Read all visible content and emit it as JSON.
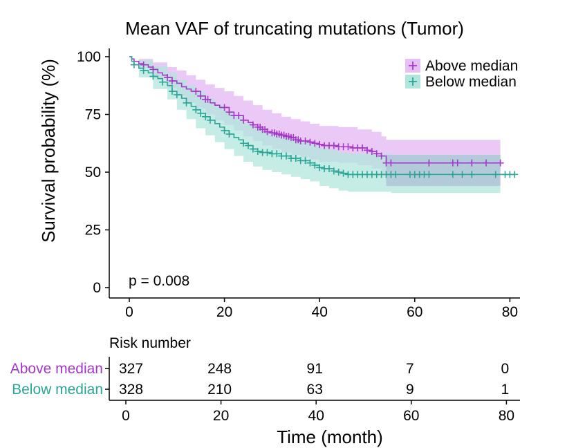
{
  "chart_data": {
    "type": "line",
    "subtype": "kaplan-meier",
    "title": "Mean VAF of truncating mutations (Tumor)",
    "xlabel": "Time (month)",
    "ylabel": "Survival probability (%)",
    "xlim": [
      -3,
      83
    ],
    "ylim": [
      0,
      100
    ],
    "xticks": [
      0,
      20,
      40,
      60,
      80
    ],
    "yticks": [
      0,
      25,
      50,
      75,
      100
    ],
    "xtick_labels": [
      "0",
      "20",
      "40",
      "60",
      "80"
    ],
    "ytick_labels": [
      "0",
      "25",
      "50",
      "75",
      "100"
    ],
    "pvalue_label": "p = 0.008",
    "legend": {
      "position": "top-right",
      "entries": [
        "Above median",
        "Below median"
      ]
    },
    "colors": {
      "above": "#a537c9",
      "above_fill": "#e6bff5",
      "below": "#2ba595",
      "below_fill": "#b2e6dc",
      "overlap_fill": "#a8b8d6"
    },
    "series": [
      {
        "name": "Above median",
        "color": "#a537c9",
        "steps": [
          [
            0,
            100
          ],
          [
            0.5,
            99
          ],
          [
            1,
            98
          ],
          [
            2,
            97
          ],
          [
            3,
            96.5
          ],
          [
            4,
            95.5
          ],
          [
            5,
            94.5
          ],
          [
            6,
            93
          ],
          [
            7,
            92
          ],
          [
            8,
            91
          ],
          [
            9,
            89.5
          ],
          [
            10,
            88.5
          ],
          [
            11,
            87
          ],
          [
            12,
            86
          ],
          [
            13,
            85
          ],
          [
            15,
            83
          ],
          [
            16,
            81.5
          ],
          [
            17,
            80
          ],
          [
            18,
            79
          ],
          [
            19,
            78
          ],
          [
            21,
            76
          ],
          [
            22,
            74.5
          ],
          [
            24,
            72.5
          ],
          [
            25,
            71.5
          ],
          [
            26,
            70.5
          ],
          [
            27,
            69.5
          ],
          [
            28,
            68.5
          ],
          [
            29,
            67.5
          ],
          [
            30,
            67
          ],
          [
            31,
            66.5
          ],
          [
            32,
            66
          ],
          [
            33,
            65.5
          ],
          [
            34,
            65
          ],
          [
            35,
            64
          ],
          [
            36,
            63.5
          ],
          [
            38,
            63
          ],
          [
            39,
            62.5
          ],
          [
            40,
            62
          ],
          [
            41,
            61.5
          ],
          [
            44,
            61
          ],
          [
            47,
            60.5
          ],
          [
            50,
            59.5
          ],
          [
            51,
            59
          ],
          [
            52,
            58
          ],
          [
            53,
            57
          ],
          [
            54,
            54
          ]
        ],
        "end": 78,
        "ci_upper": [
          [
            0,
            100
          ],
          [
            2,
            99
          ],
          [
            5,
            97.5
          ],
          [
            8,
            95.5
          ],
          [
            10,
            94
          ],
          [
            12,
            92
          ],
          [
            14,
            90
          ],
          [
            16,
            88
          ],
          [
            18,
            86.5
          ],
          [
            20,
            85
          ],
          [
            22,
            83
          ],
          [
            24,
            81
          ],
          [
            26,
            79
          ],
          [
            28,
            77
          ],
          [
            30,
            75.5
          ],
          [
            32,
            74
          ],
          [
            34,
            73
          ],
          [
            36,
            72
          ],
          [
            38,
            71
          ],
          [
            40,
            70
          ],
          [
            44,
            69.5
          ],
          [
            48,
            68.5
          ],
          [
            51,
            67.5
          ],
          [
            53,
            65.5
          ],
          [
            54,
            64
          ],
          [
            78,
            64
          ]
        ],
        "ci_lower": [
          [
            0,
            100
          ],
          [
            2,
            95
          ],
          [
            5,
            90.5
          ],
          [
            8,
            86.5
          ],
          [
            10,
            83
          ],
          [
            12,
            80
          ],
          [
            14,
            77.5
          ],
          [
            16,
            75
          ],
          [
            18,
            72.5
          ],
          [
            20,
            70.5
          ],
          [
            22,
            68
          ],
          [
            24,
            65.5
          ],
          [
            26,
            63.5
          ],
          [
            28,
            61.5
          ],
          [
            30,
            60
          ],
          [
            32,
            58.5
          ],
          [
            34,
            57.5
          ],
          [
            36,
            56.5
          ],
          [
            38,
            55.5
          ],
          [
            40,
            54.5
          ],
          [
            44,
            54
          ],
          [
            48,
            53
          ],
          [
            51,
            51.5
          ],
          [
            53,
            49
          ],
          [
            54,
            44
          ],
          [
            78,
            44
          ]
        ],
        "censor_times": [
          3,
          5,
          8,
          9,
          14,
          15,
          16,
          16.5,
          20,
          21,
          22,
          23,
          24,
          26,
          27,
          27.5,
          28,
          28.5,
          29,
          30,
          30.5,
          31,
          31.5,
          32,
          32.5,
          33,
          33.5,
          34,
          34.5,
          35,
          35.5,
          36,
          37,
          38,
          39,
          40,
          41,
          42,
          43,
          44,
          45,
          46,
          47,
          48,
          49,
          50,
          51,
          52,
          53,
          54,
          55,
          63,
          68,
          69,
          72,
          75,
          78
        ],
        "risk": [
          "327",
          "248",
          "91",
          "7",
          "0"
        ]
      },
      {
        "name": "Below median",
        "color": "#2ba595",
        "steps": [
          [
            0,
            100
          ],
          [
            0.5,
            98
          ],
          [
            1,
            96.5
          ],
          [
            2,
            95
          ],
          [
            3,
            94
          ],
          [
            4,
            93
          ],
          [
            5,
            91.5
          ],
          [
            6,
            90.5
          ],
          [
            7,
            89
          ],
          [
            8,
            87.5
          ],
          [
            9,
            85
          ],
          [
            10,
            83.5
          ],
          [
            11,
            82
          ],
          [
            12,
            80
          ],
          [
            13,
            78.5
          ],
          [
            14,
            77
          ],
          [
            15,
            75.5
          ],
          [
            16,
            74
          ],
          [
            17,
            72.5
          ],
          [
            18,
            71
          ],
          [
            19,
            69.5
          ],
          [
            20,
            68
          ],
          [
            21,
            66.5
          ],
          [
            22,
            65
          ],
          [
            23,
            64
          ],
          [
            24,
            62.5
          ],
          [
            25,
            61.5
          ],
          [
            26,
            60
          ],
          [
            27,
            59
          ],
          [
            28,
            58.5
          ],
          [
            30,
            58
          ],
          [
            32,
            57
          ],
          [
            34,
            56
          ],
          [
            36,
            55
          ],
          [
            38,
            54
          ],
          [
            39,
            53
          ],
          [
            40,
            52
          ],
          [
            41,
            51.5
          ],
          [
            43,
            50.5
          ],
          [
            44,
            50
          ],
          [
            45,
            49.5
          ],
          [
            46,
            49
          ],
          [
            55,
            49
          ]
        ],
        "end": 81,
        "ci_upper": [
          [
            0,
            100
          ],
          [
            2,
            98.5
          ],
          [
            5,
            96
          ],
          [
            8,
            93
          ],
          [
            10,
            90
          ],
          [
            12,
            87.5
          ],
          [
            14,
            85
          ],
          [
            16,
            82
          ],
          [
            18,
            79
          ],
          [
            20,
            76.5
          ],
          [
            22,
            74
          ],
          [
            24,
            71.5
          ],
          [
            26,
            69
          ],
          [
            28,
            67.5
          ],
          [
            30,
            66.5
          ],
          [
            32,
            65.5
          ],
          [
            34,
            64.5
          ],
          [
            36,
            63.5
          ],
          [
            38,
            62.5
          ],
          [
            40,
            60.5
          ],
          [
            42,
            59.5
          ],
          [
            44,
            58.5
          ],
          [
            46,
            58
          ],
          [
            55,
            57.5
          ],
          [
            78,
            57.5
          ]
        ],
        "ci_lower": [
          [
            0,
            100
          ],
          [
            2,
            91
          ],
          [
            5,
            86
          ],
          [
            8,
            81.5
          ],
          [
            10,
            77
          ],
          [
            12,
            73
          ],
          [
            14,
            69
          ],
          [
            16,
            66
          ],
          [
            18,
            63
          ],
          [
            20,
            60
          ],
          [
            22,
            57
          ],
          [
            24,
            54.5
          ],
          [
            26,
            52.5
          ],
          [
            28,
            51
          ],
          [
            30,
            50
          ],
          [
            32,
            49
          ],
          [
            34,
            48
          ],
          [
            36,
            47
          ],
          [
            38,
            46
          ],
          [
            40,
            44
          ],
          [
            42,
            43
          ],
          [
            44,
            42
          ],
          [
            46,
            41.5
          ],
          [
            55,
            41
          ],
          [
            78,
            41
          ]
        ],
        "censor_times": [
          1,
          3,
          5,
          7,
          9,
          10,
          12,
          14,
          15,
          16,
          17,
          20,
          21,
          24,
          25,
          26,
          27,
          28,
          29,
          30,
          31,
          32,
          33,
          34,
          35,
          36,
          37,
          38,
          39,
          40,
          41,
          42,
          43,
          44,
          45,
          46,
          47,
          48,
          49,
          50,
          51,
          52,
          53,
          54,
          55,
          56,
          59,
          60,
          61,
          62,
          63,
          68,
          70,
          72,
          77,
          79,
          80,
          81
        ],
        "risk": [
          "328",
          "210",
          "63",
          "9",
          "1"
        ]
      }
    ],
    "risk_table": {
      "title": "Risk number",
      "times": [
        0,
        20,
        40,
        60,
        80
      ],
      "groups": [
        "Above median",
        "Below median"
      ]
    }
  }
}
